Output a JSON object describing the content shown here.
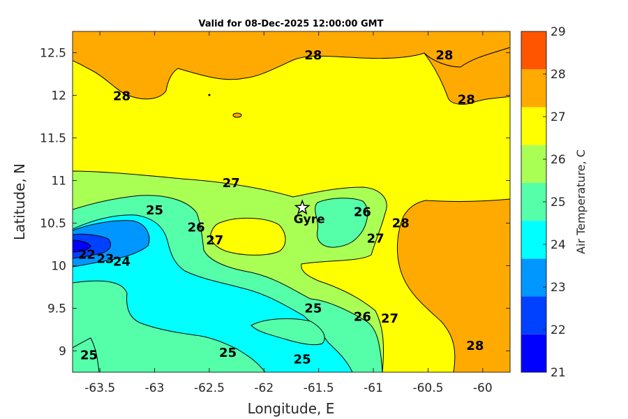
{
  "chart_data": {
    "type": "filled-contour",
    "title": "Valid for 08-Dec-2025 12:00:00 GMT",
    "xlabel": "Longitude, E",
    "ylabel": "Latitude, N",
    "xlim": [
      -63.75,
      -59.75
    ],
    "ylim": [
      8.75,
      12.75
    ],
    "xticks": [
      -63.5,
      -63,
      -62.5,
      -62,
      -61.5,
      -61,
      -60.5,
      -60
    ],
    "yticks": [
      9,
      9.5,
      10,
      10.5,
      11,
      11.5,
      12,
      12.5
    ],
    "colorbar": {
      "label": "Air Temperature, C",
      "levels": [
        21,
        22,
        23,
        24,
        25,
        26,
        27,
        28,
        29
      ],
      "colors": [
        "#0000ff",
        "#0040ff",
        "#0096ff",
        "#00ffff",
        "#55ffaa",
        "#aaff55",
        "#ffff00",
        "#ffaa00",
        "#ff5500"
      ]
    },
    "contour_labels": [
      {
        "text": "28",
        "lon": -61.55,
        "lat": 12.47
      },
      {
        "text": "28",
        "lon": -60.35,
        "lat": 12.47
      },
      {
        "text": "28",
        "lon": -63.3,
        "lat": 11.99
      },
      {
        "text": "28",
        "lon": -60.15,
        "lat": 11.95
      },
      {
        "text": "27",
        "lon": -62.3,
        "lat": 10.97
      },
      {
        "text": "25",
        "lon": -63.0,
        "lat": 10.65
      },
      {
        "text": "26",
        "lon": -62.62,
        "lat": 10.45
      },
      {
        "text": "27",
        "lon": -62.45,
        "lat": 10.3
      },
      {
        "text": "26",
        "lon": -61.1,
        "lat": 10.63
      },
      {
        "text": "27",
        "lon": -60.98,
        "lat": 10.32
      },
      {
        "text": "28",
        "lon": -60.75,
        "lat": 10.5
      },
      {
        "text": "22",
        "lon": -63.62,
        "lat": 10.13
      },
      {
        "text": "23",
        "lon": -63.45,
        "lat": 10.08
      },
      {
        "text": "24",
        "lon": -63.3,
        "lat": 10.05
      },
      {
        "text": "25",
        "lon": -61.55,
        "lat": 9.5
      },
      {
        "text": "26",
        "lon": -61.1,
        "lat": 9.4
      },
      {
        "text": "27",
        "lon": -60.85,
        "lat": 9.38
      },
      {
        "text": "28",
        "lon": -60.07,
        "lat": 9.06
      },
      {
        "text": "25",
        "lon": -63.6,
        "lat": 8.95
      },
      {
        "text": "25",
        "lon": -62.33,
        "lat": 8.98
      },
      {
        "text": "25",
        "lon": -61.65,
        "lat": 8.9
      }
    ],
    "markers": [
      {
        "name": "Gyre",
        "lon": -61.65,
        "lat": 10.68,
        "symbol": "star"
      }
    ]
  }
}
